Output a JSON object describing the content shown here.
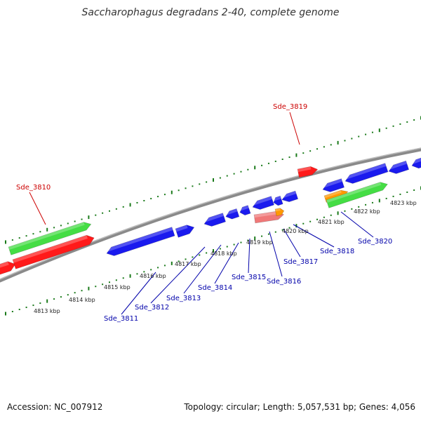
{
  "title": "Saccharophagus degradans 2-40, complete genome",
  "footer": {
    "accession": "Accession: NC_007912",
    "topology": "Topology: circular; Length: 5,057,531 bp; Genes: 4,056"
  },
  "colors": {
    "forward_label": "#cc0000",
    "reverse_label": "#0000aa",
    "backbone": "#8a8a8a",
    "tick": "#1a7a1a",
    "red_gene": "#ff1a1a",
    "blue_gene": "#1a1aee",
    "green_gene": "#44dd44",
    "orange_gene": "#ff9900",
    "pink_gene": "#f07878"
  },
  "scale_labels": [
    "4813 kbp",
    "4814 kbp",
    "4815 kbp",
    "4816 kbp",
    "4817 kbp",
    "4818 kbp",
    "4819 kbp",
    "4820 kbp",
    "4821 kbp",
    "4822 kbp",
    "4823 kbp"
  ],
  "forward_labels": [
    "Sde_3810",
    "Sde_3819"
  ],
  "reverse_labels": [
    "Sde_3811",
    "Sde_3812",
    "Sde_3813",
    "Sde_3814",
    "Sde_3815",
    "Sde_3816",
    "Sde_3817",
    "Sde_3818",
    "Sde_3820"
  ]
}
